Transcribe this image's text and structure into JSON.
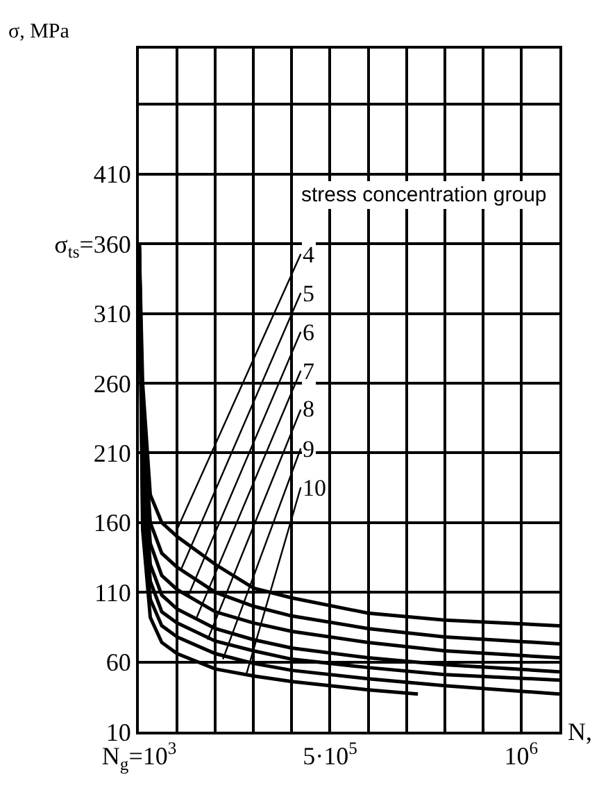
{
  "chart_data": {
    "type": "line",
    "xlabel": "N,",
    "ylabel": "σ, MPa",
    "xlim": [
      0,
      1100000
    ],
    "ylim": [
      10,
      500
    ],
    "xticks": [
      {
        "value": 1000,
        "label": "N$_{g}$=10$^{3}$"
      },
      {
        "value": 100000,
        "label": null
      },
      {
        "value": 200000,
        "label": null
      },
      {
        "value": 300000,
        "label": null
      },
      {
        "value": 400000,
        "label": null
      },
      {
        "value": 500000,
        "label": "5·10$^{5}$"
      },
      {
        "value": 600000,
        "label": null
      },
      {
        "value": 700000,
        "label": null
      },
      {
        "value": 800000,
        "label": null
      },
      {
        "value": 900000,
        "label": null
      },
      {
        "value": 1000000,
        "label": "10$^{6}$"
      }
    ],
    "yticks": [
      10,
      60,
      110,
      160,
      210,
      260,
      310,
      {
        "value": 360,
        "label": "σ$_{ts}$=360"
      },
      410,
      {
        "value": 460,
        "label": null
      }
    ],
    "grid": true,
    "marker": "none",
    "line_style": "solid",
    "x": [
      1000,
      10000,
      30000,
      60000,
      100000,
      200000,
      300000,
      400000,
      600000,
      800000,
      1100000
    ],
    "series": [
      {
        "color": "#000000",
        "values": [
          360,
          260,
          180,
          160,
          150,
          130,
          113,
          106,
          95,
          90,
          86
        ]
      },
      {
        "color": "#000000",
        "values": [
          360,
          240,
          160,
          138,
          128,
          110,
          100,
          93,
          84,
          78,
          73
        ]
      },
      {
        "color": "#000000",
        "values": [
          360,
          220,
          145,
          122,
          112,
          96,
          88,
          82,
          74,
          68,
          63
        ]
      },
      {
        "color": "#000000",
        "values": [
          360,
          200,
          130,
          108,
          98,
          84,
          76,
          70,
          63,
          58,
          53
        ]
      },
      {
        "color": "#000000",
        "values": [
          360,
          185,
          118,
          96,
          88,
          75,
          68,
          62,
          56,
          51,
          47
        ]
      },
      {
        "color": "#000000",
        "values": [
          360,
          170,
          105,
          86,
          78,
          66,
          59,
          54,
          48,
          43,
          37
        ]
      },
      {
        "color": "#000000",
        "x": [
          1000,
          10000,
          30000,
          60000,
          100000,
          200000,
          300000,
          400000,
          600000,
          730000
        ],
        "values": [
          360,
          155,
          92,
          74,
          66,
          55,
          50,
          46,
          40,
          37
        ]
      }
    ],
    "annotations": [
      "stress concentration group",
      {
        "text": "4",
        "x": 100000,
        "y": 155
      },
      {
        "text": "5",
        "x": 110000,
        "y": 126
      },
      {
        "text": "6",
        "x": 130000,
        "y": 108
      },
      {
        "text": "7",
        "x": 150000,
        "y": 91
      },
      {
        "text": "8",
        "x": 180000,
        "y": 76
      },
      {
        "text": "9",
        "x": 220000,
        "y": 62
      },
      {
        "text": "10",
        "x": 280000,
        "y": 50
      }
    ]
  }
}
